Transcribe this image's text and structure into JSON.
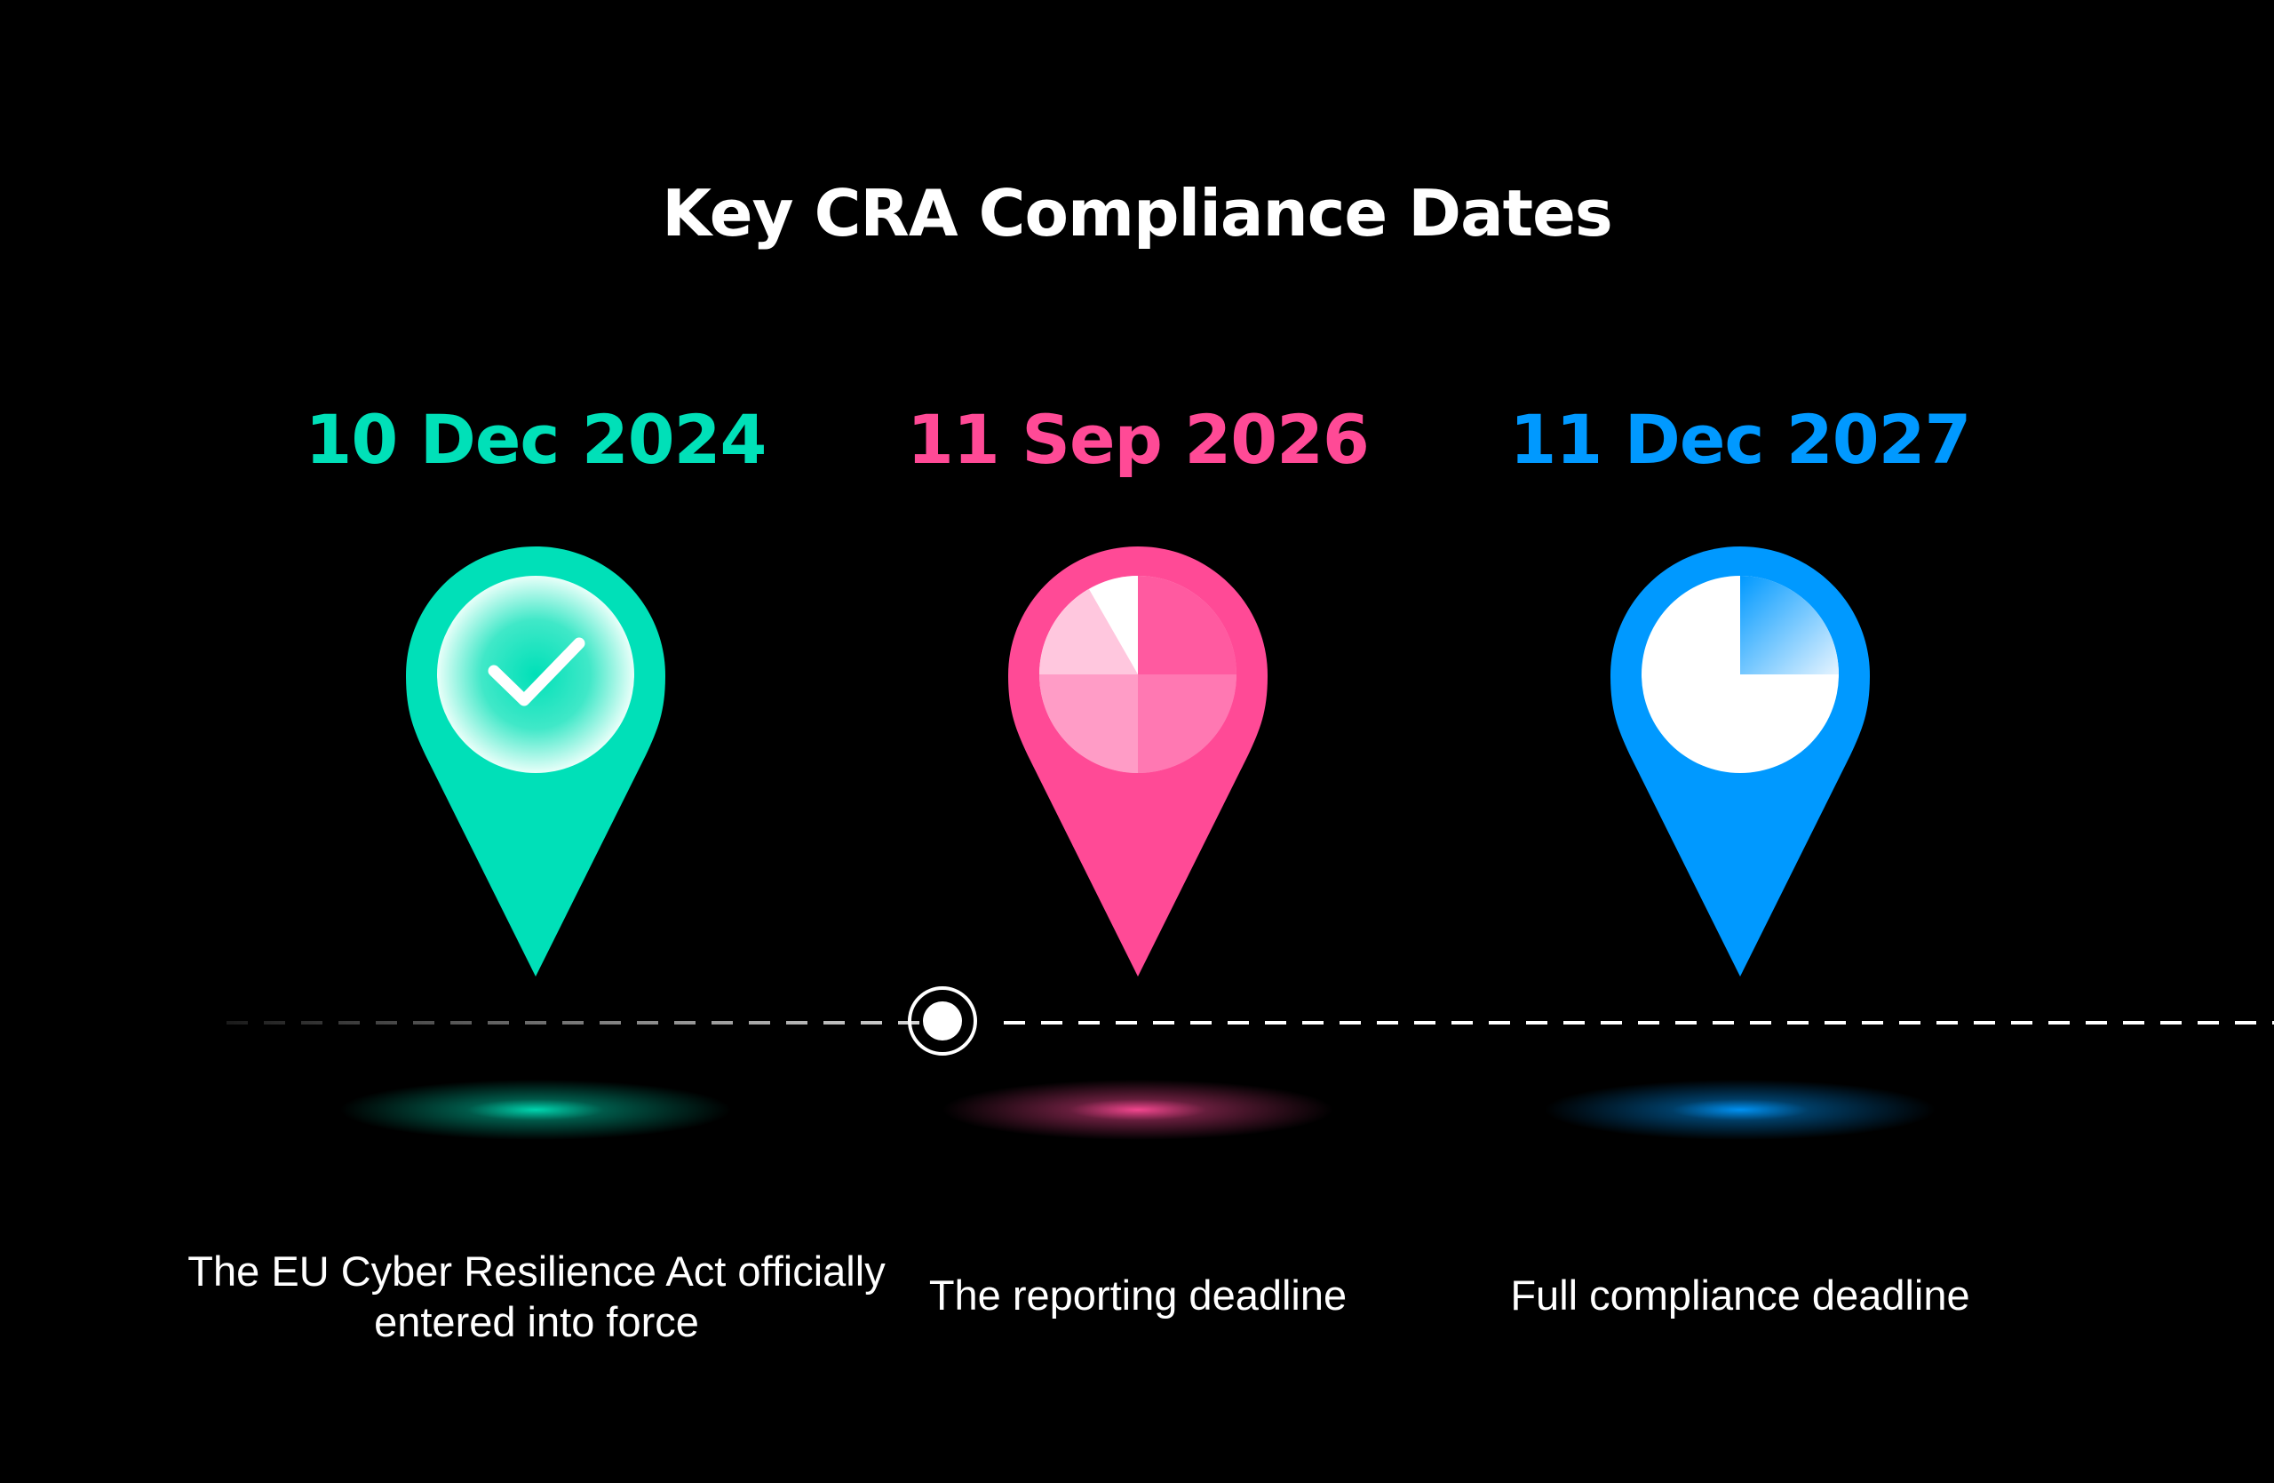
{
  "title": "Key CRA Compliance Dates",
  "milestones": [
    {
      "date": "10 Dec 2024",
      "description": "The EU Cyber Resilience Act officially entered into force",
      "color": "#00E0B8",
      "icon": "check-icon",
      "status": "completed"
    },
    {
      "date": "11 Sep 2026",
      "description": "The reporting deadline",
      "color": "#FF4A96",
      "icon": "pie-progress-icon",
      "progress": 0.9
    },
    {
      "date": "11 Dec 2027",
      "description": "Full compliance deadline",
      "color": "#0099FF",
      "icon": "pie-progress-icon",
      "progress": 0.75
    }
  ],
  "timeline": {
    "current_marker_icon": "current-position-marker"
  }
}
